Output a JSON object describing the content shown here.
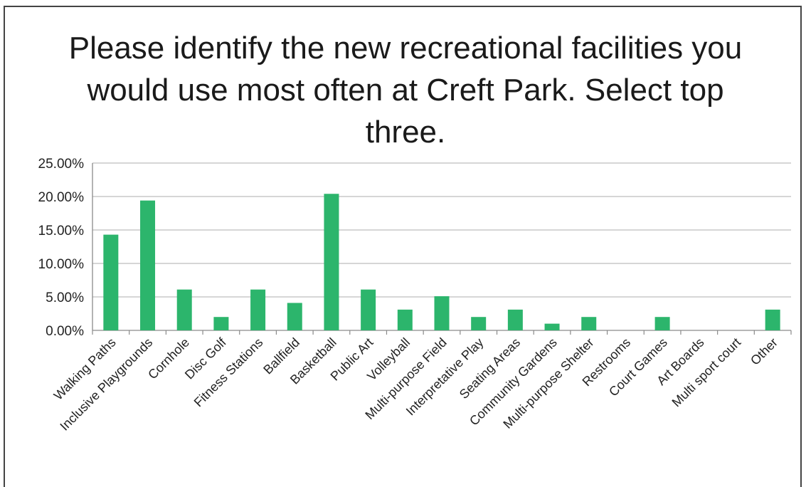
{
  "chart_data": {
    "type": "bar",
    "title": "Please identify the new recreational facilities you would use most often at Creft Park. Select top three.",
    "categories": [
      "Walking Paths",
      "Inclusive Playgrounds",
      "Cornhole",
      "Disc Golf",
      "Fitness Stations",
      "Ballfield",
      "Basketball",
      "Public Art",
      "Volleyball",
      "Multi-purpose Field",
      "Interpretative Play",
      "Seating Areas",
      "Community Gardens",
      "Multi-purpose Shelter",
      "Restrooms",
      "Court Games",
      "Art Boards",
      "Multi sport court",
      "Other"
    ],
    "values": [
      14.3,
      19.4,
      6.1,
      2.0,
      6.1,
      4.1,
      20.4,
      6.1,
      3.1,
      5.1,
      2.0,
      3.1,
      1.0,
      2.0,
      0,
      2.0,
      0,
      0,
      3.1
    ],
    "ylim": [
      0,
      25
    ],
    "yticks": [
      "0.00%",
      "5.00%",
      "10.00%",
      "15.00%",
      "20.00%",
      "25.00%"
    ],
    "bar_color": "#2cb56c",
    "grid": true,
    "legend": "none"
  }
}
